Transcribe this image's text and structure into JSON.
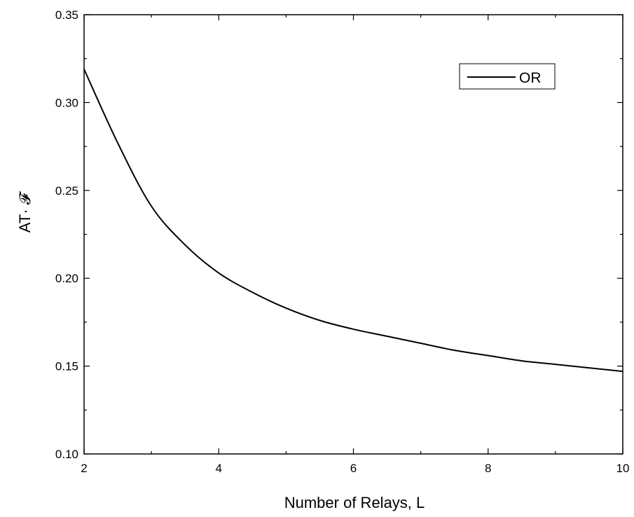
{
  "chart_data": {
    "type": "line",
    "xlabel": "Number of Relays, L",
    "ylabel": "AT· 𝓕",
    "xlim": [
      2,
      10
    ],
    "ylim": [
      0.1,
      0.35
    ],
    "x_ticks": [
      "2",
      "4",
      "6",
      "8",
      "10"
    ],
    "y_ticks": [
      "0.10",
      "0.15",
      "0.20",
      "0.25",
      "0.30",
      "0.35"
    ],
    "grid": false,
    "legend_position": "top-right",
    "series": [
      {
        "name": "OR",
        "color": "#000000",
        "x": [
          2.0,
          2.5,
          3.0,
          3.5,
          4.0,
          4.5,
          5.0,
          5.5,
          6.0,
          6.5,
          7.0,
          7.5,
          8.0,
          8.5,
          9.0,
          9.5,
          10.0
        ],
        "values": [
          0.319,
          0.277,
          0.241,
          0.219,
          0.203,
          0.192,
          0.183,
          0.176,
          0.171,
          0.167,
          0.163,
          0.159,
          0.156,
          0.153,
          0.151,
          0.149,
          0.147
        ]
      }
    ]
  }
}
